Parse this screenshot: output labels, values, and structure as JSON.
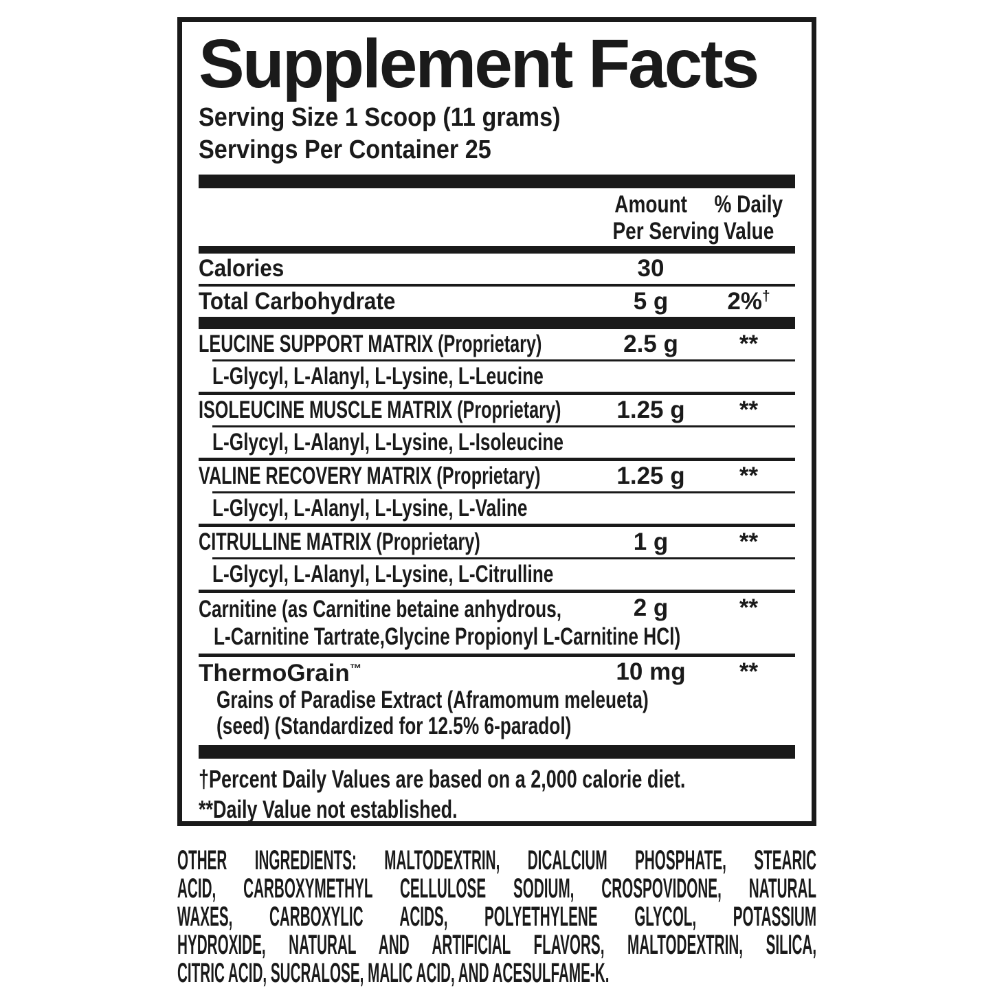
{
  "colors": {
    "ink": "#1a1a1a",
    "background": "#ffffff"
  },
  "label": {
    "title": "Supplement Facts",
    "serving": {
      "size": "Serving Size 1 Scoop (11 grams)",
      "per_container": "Servings Per Container 25"
    },
    "columns": {
      "amount_l1": "Amount",
      "amount_l2": "Per Serving",
      "dv_l1": "% Daily",
      "dv_l2": "Value"
    },
    "rows": {
      "calories": {
        "name": "Calories",
        "amount": "30",
        "dv": ""
      },
      "carb": {
        "name": "Total Carbohydrate",
        "amount": "5 g",
        "dv": "2%",
        "dv_sup": "†"
      },
      "leucine": {
        "name": "LEUCINE SUPPORT MATRIX (Proprietary)",
        "amount": "2.5 g",
        "dv": "**",
        "sub": "L-Glycyl, L-Alanyl, L-Lysine, L-Leucine"
      },
      "isoleucine": {
        "name": "ISOLEUCINE MUSCLE MATRIX (Proprietary)",
        "amount": "1.25 g",
        "dv": "**",
        "sub": "L-Glycyl, L-Alanyl, L-Lysine, L-Isoleucine"
      },
      "valine": {
        "name": "VALINE RECOVERY MATRIX (Proprietary)",
        "amount": "1.25 g",
        "dv": "**",
        "sub": "L-Glycyl, L-Alanyl, L-Lysine, L-Valine"
      },
      "citrulline": {
        "name": "CITRULLINE MATRIX (Proprietary)",
        "amount": "1 g",
        "dv": "**",
        "sub": "L-Glycyl, L-Alanyl, L-Lysine, L-Citrulline"
      },
      "carnitine": {
        "name_line1": "Carnitine (as Carnitine betaine anhydrous,",
        "name_line2": "L-Carnitine Tartrate,Glycine Propionyl L-Carnitine HCl)",
        "amount": "2 g",
        "dv": "**"
      },
      "thermograin": {
        "name": "ThermoGrain",
        "trademark": "™",
        "amount": "10 mg",
        "dv": "**",
        "sub1": "Grains of Paradise Extract (Aframomum meleueta)",
        "sub2": "(seed) (Standardized for 12.5% 6-paradol)"
      }
    },
    "footnotes": [
      "†Percent Daily Values are based on a 2,000 calorie diet.",
      "**Daily Value not established."
    ]
  },
  "other_ingredients": {
    "lines": [
      "OTHER INGREDIENTS: MALTODEXTRIN, DICALCIUM PHOSPHATE, STEARIC",
      "ACID, CARBOXYMETHYL CELLULOSE SODIUM, CROSPOVIDONE, NATURAL",
      "WAXES, CARBOXYLIC ACIDS, POLYETHYLENE GLYCOL, POTASSIUM",
      "HYDROXIDE, NATURAL AND ARTIFICIAL FLAVORS, MALTODEXTRIN, SILICA,",
      "CITRIC ACID, SUCRALOSE, MALIC ACID, AND ACESULFAME-K."
    ]
  }
}
